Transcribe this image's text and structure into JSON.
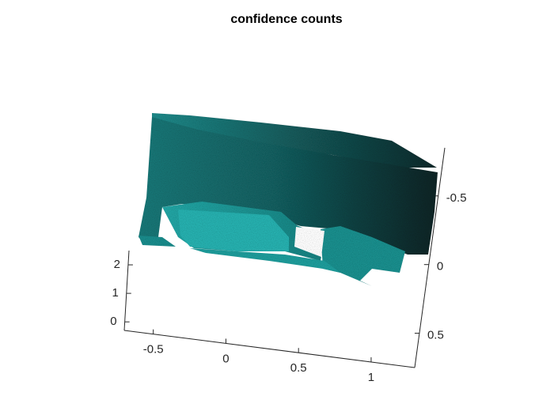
{
  "chart_data": {
    "type": "scatter",
    "title": "confidence counts",
    "xlabel": "",
    "ylabel": "",
    "zlabel": "",
    "x_ticks": [
      "-0.5",
      "0",
      "0.5",
      "1"
    ],
    "y_ticks": [
      "-0.5",
      "0",
      "0.5"
    ],
    "z_ticks": [
      "0",
      "1",
      "2"
    ],
    "xlim": [
      -0.7,
      1.3
    ],
    "ylim": [
      -0.85,
      0.75
    ],
    "zlim": [
      -0.3,
      2.5
    ],
    "grid": false,
    "point_color_range": [
      "#0a1f20",
      "#1aa3a3"
    ],
    "point_cloud_description": "dense 3D point cloud of a room interior (wall, floor and furniture), colored dark to bright teal by confidence"
  }
}
